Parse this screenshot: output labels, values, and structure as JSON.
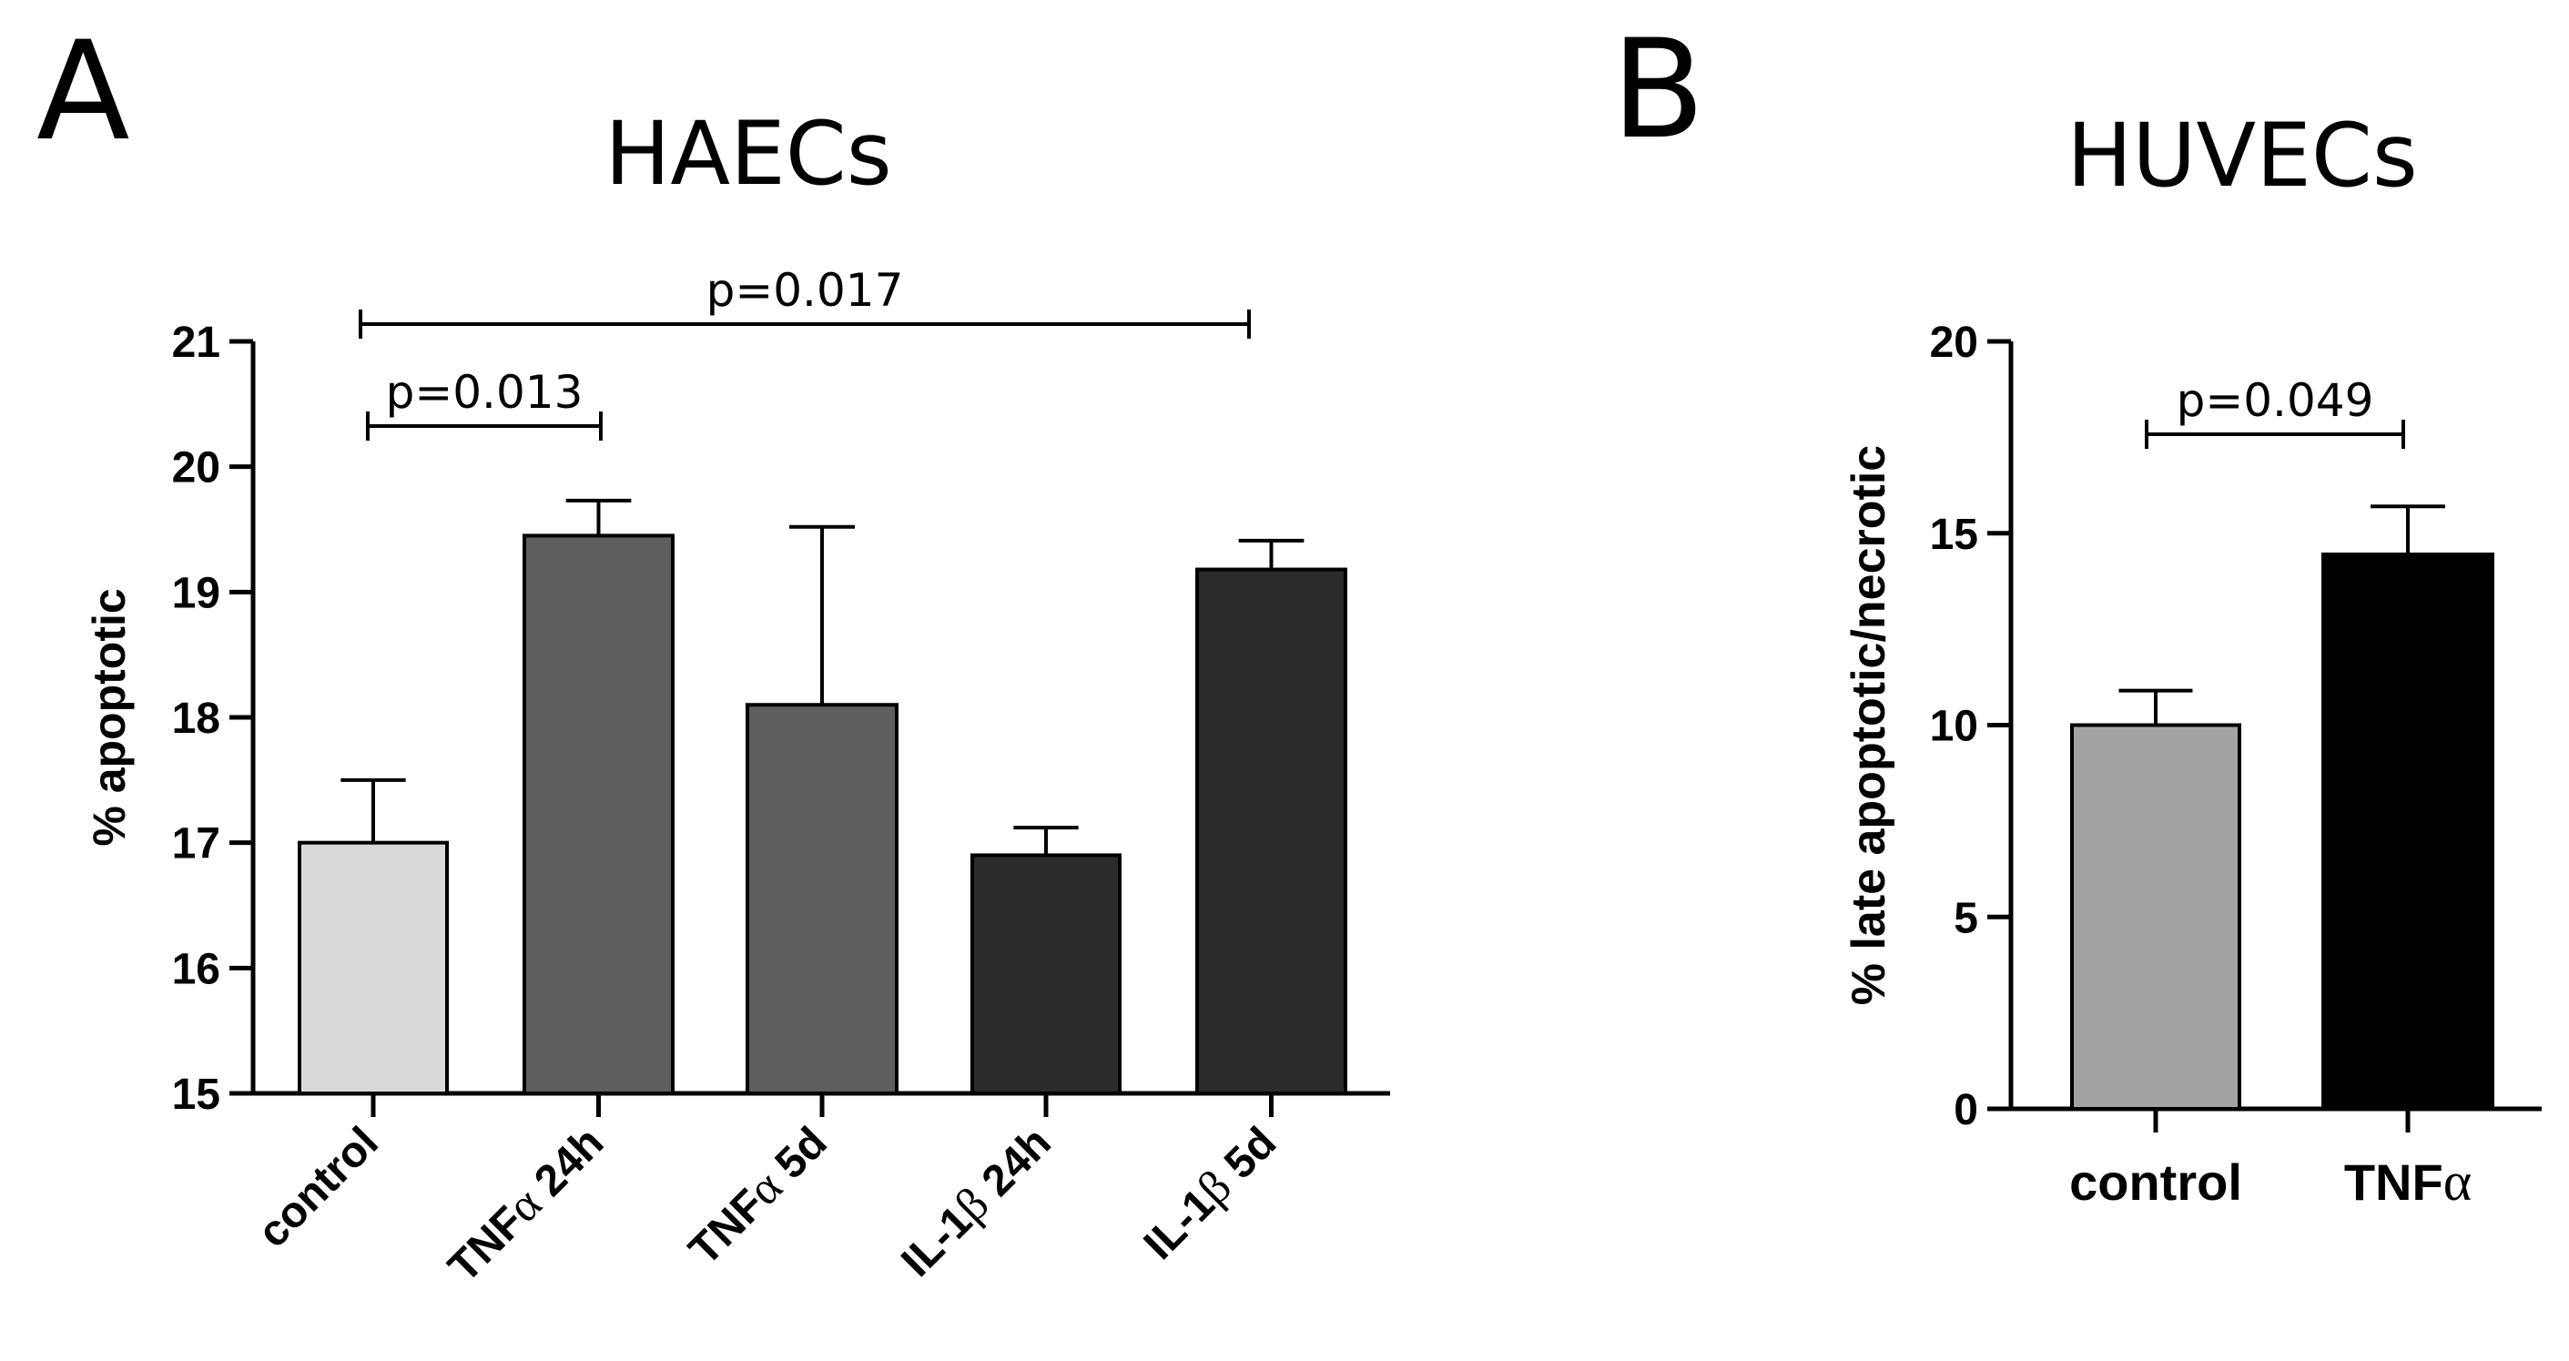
{
  "panels": [
    {
      "letter": "A",
      "chart_data": {
        "type": "bar",
        "title": "HAECs",
        "xlabel": "",
        "ylabel": "% apoptotic",
        "ylim": [
          15,
          21
        ],
        "yticks": [
          15,
          16,
          17,
          18,
          19,
          20,
          21
        ],
        "grid": false,
        "categories": [
          "control",
          "TNFα 24h",
          "TNFα 5d",
          "IL-1β 24h",
          "IL-1β 5d"
        ],
        "category_parts": [
          [
            {
              "t": "control"
            }
          ],
          [
            {
              "t": "TNF"
            },
            {
              "t": "α",
              "serif": true
            },
            {
              "t": " 24h"
            }
          ],
          [
            {
              "t": "TNF"
            },
            {
              "t": "α",
              "serif": true
            },
            {
              "t": " 5d"
            }
          ],
          [
            {
              "t": "IL-1"
            },
            {
              "t": "β",
              "serif": true
            },
            {
              "t": " 24h"
            }
          ],
          [
            {
              "t": "IL-1"
            },
            {
              "t": "β",
              "serif": true
            },
            {
              "t": " 5d"
            }
          ]
        ],
        "values": [
          17.0,
          19.45,
          18.1,
          16.9,
          19.18
        ],
        "errors": [
          0.5,
          0.28,
          1.42,
          0.22,
          0.23
        ],
        "colors": [
          "#d9d9d9",
          "#5e5e5e",
          "#5e5e5e",
          "#2b2b2b",
          "#2b2b2b"
        ],
        "significance": [
          {
            "from": 0,
            "to": 1,
            "label": "p=0.013"
          },
          {
            "from": 0,
            "to": 4,
            "label": "p=0.017"
          }
        ]
      }
    },
    {
      "letter": "B",
      "chart_data": {
        "type": "bar",
        "title": "HUVECs",
        "xlabel": "",
        "ylabel": "% late apoptotic/necrotic",
        "ylim": [
          0,
          20
        ],
        "yticks": [
          0,
          5,
          10,
          15,
          20
        ],
        "grid": false,
        "categories": [
          "control",
          "TNFα"
        ],
        "category_parts": [
          [
            {
              "t": "control"
            }
          ],
          [
            {
              "t": "TNF"
            },
            {
              "t": "α",
              "serif": true
            }
          ]
        ],
        "values": [
          10.0,
          14.45
        ],
        "errors": [
          0.9,
          1.25
        ],
        "colors": [
          "#a3a3a6",
          "#000000"
        ],
        "significance": [
          {
            "from": 0,
            "to": 1,
            "label": "p=0.049"
          }
        ]
      }
    }
  ]
}
